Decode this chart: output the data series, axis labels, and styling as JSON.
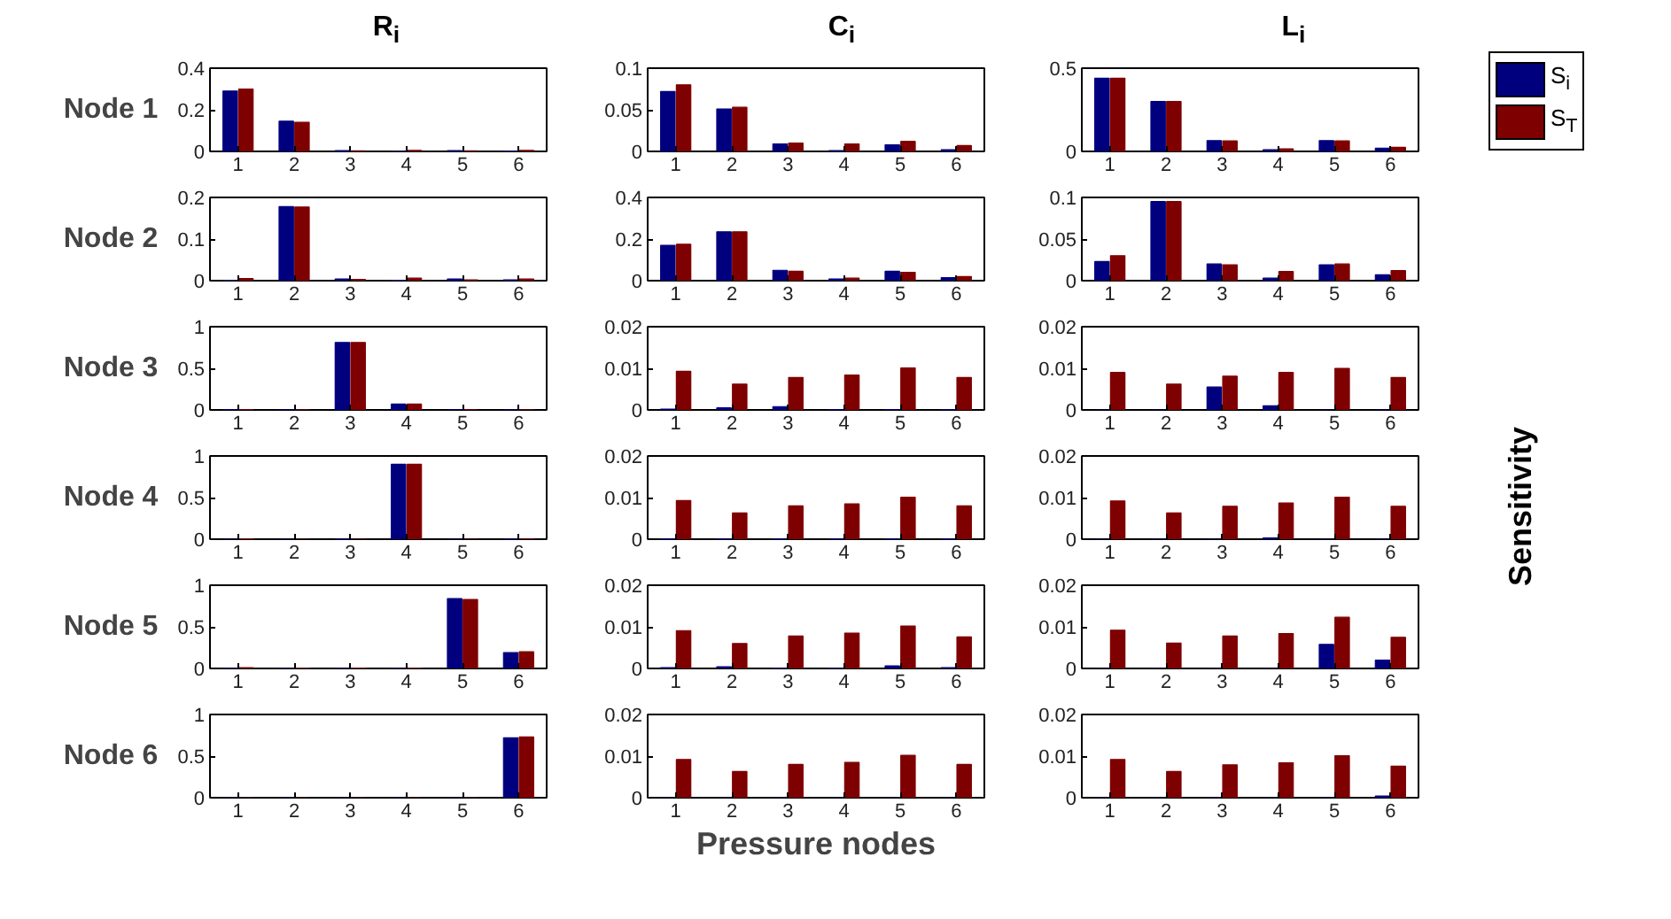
{
  "chart_data": [
    {
      "type": "bar",
      "title": "R$_{i}$",
      "ylabel": "Node 1",
      "categories": [
        "1",
        "2",
        "3",
        "4",
        "5",
        "6"
      ],
      "ylim": [
        0,
        0.4
      ],
      "yticks": [
        0,
        0.2,
        0.4
      ],
      "series": [
        {
          "color": "#00007f",
          "values": [
            0.29,
            0.145,
            0.004,
            0.001,
            0.004,
            0.002
          ]
        },
        {
          "color": "#7f0000",
          "values": [
            0.3,
            0.14,
            0.003,
            0.005,
            0.003,
            0.005
          ]
        }
      ]
    },
    {
      "type": "bar",
      "title": "C$_{i}$",
      "categories": [
        "1",
        "2",
        "3",
        "4",
        "5",
        "6"
      ],
      "ylim": [
        0,
        0.1
      ],
      "yticks": [
        0,
        0.05,
        0.1
      ],
      "series": [
        {
          "color": "#00007f",
          "values": [
            0.072,
            0.051,
            0.009,
            0.001,
            0.008,
            0.002
          ]
        },
        {
          "color": "#7f0000",
          "values": [
            0.08,
            0.053,
            0.01,
            0.009,
            0.012,
            0.007
          ]
        }
      ]
    },
    {
      "type": "bar",
      "title": "L$_{i}$",
      "categories": [
        "1",
        "2",
        "3",
        "4",
        "5",
        "6"
      ],
      "ylim": [
        0,
        0.5
      ],
      "yticks": [
        0,
        0.5
      ],
      "legend": "right",
      "series": [
        {
          "name": "S$_{i}$",
          "color": "#00007f",
          "values": [
            0.44,
            0.3,
            0.065,
            0.01,
            0.065,
            0.02
          ]
        },
        {
          "name": "S$_{T}$",
          "color": "#7f0000",
          "values": [
            0.44,
            0.3,
            0.063,
            0.015,
            0.063,
            0.025
          ]
        }
      ]
    },
    {
      "type": "bar",
      "ylabel": "Node 2",
      "categories": [
        "1",
        "2",
        "3",
        "4",
        "5",
        "6"
      ],
      "ylim": [
        0,
        0.2
      ],
      "yticks": [
        0,
        0.1,
        0.2
      ],
      "series": [
        {
          "color": "#00007f",
          "values": [
            0.001,
            0.178,
            0.004,
            0.001,
            0.004,
            0.002
          ]
        },
        {
          "color": "#7f0000",
          "values": [
            0.005,
            0.177,
            0.003,
            0.006,
            0.002,
            0.004
          ]
        }
      ]
    },
    {
      "type": "bar",
      "categories": [
        "1",
        "2",
        "3",
        "4",
        "5",
        "6"
      ],
      "ylim": [
        0,
        0.4
      ],
      "yticks": [
        0,
        0.2,
        0.4
      ],
      "series": [
        {
          "color": "#00007f",
          "values": [
            0.17,
            0.235,
            0.05,
            0.008,
            0.045,
            0.015
          ]
        },
        {
          "color": "#7f0000",
          "values": [
            0.175,
            0.235,
            0.045,
            0.012,
            0.04,
            0.02
          ]
        }
      ]
    },
    {
      "type": "bar",
      "categories": [
        "1",
        "2",
        "3",
        "4",
        "5",
        "6"
      ],
      "ylim": [
        0,
        0.1
      ],
      "yticks": [
        0,
        0.05,
        0.1
      ],
      "series": [
        {
          "color": "#00007f",
          "values": [
            0.023,
            0.095,
            0.02,
            0.003,
            0.019,
            0.007
          ]
        },
        {
          "color": "#7f0000",
          "values": [
            0.03,
            0.095,
            0.019,
            0.011,
            0.02,
            0.012
          ]
        }
      ]
    },
    {
      "type": "bar",
      "ylabel": "Node 3",
      "categories": [
        "1",
        "2",
        "3",
        "4",
        "5",
        "6"
      ],
      "ylim": [
        0,
        1
      ],
      "yticks": [
        0,
        0.5,
        1
      ],
      "series": [
        {
          "color": "#00007f",
          "values": [
            0.003,
            0.002,
            0.81,
            0.07,
            0.002,
            0.001
          ]
        },
        {
          "color": "#7f0000",
          "values": [
            0.004,
            0.002,
            0.81,
            0.07,
            0.002,
            0.001
          ]
        }
      ]
    },
    {
      "type": "bar",
      "categories": [
        "1",
        "2",
        "3",
        "4",
        "5",
        "6"
      ],
      "ylim": [
        0,
        0.02
      ],
      "yticks": [
        0,
        0.01,
        0.02
      ],
      "series": [
        {
          "color": "#00007f",
          "values": [
            0.0002,
            0.0005,
            0.0008,
            0.0001,
            0.0001,
            0.0001
          ]
        },
        {
          "color": "#7f0000",
          "values": [
            0.0093,
            0.0062,
            0.0078,
            0.0084,
            0.0101,
            0.0078
          ]
        }
      ]
    },
    {
      "type": "bar",
      "y2label": "Sensitivity",
      "categories": [
        "1",
        "2",
        "3",
        "4",
        "5",
        "6"
      ],
      "ylim": [
        0,
        0.02
      ],
      "yticks": [
        0,
        0.01,
        0.02
      ],
      "series": [
        {
          "color": "#00007f",
          "values": [
            0,
            0,
            0.0055,
            0.001,
            0,
            0
          ]
        },
        {
          "color": "#7f0000",
          "values": [
            0.009,
            0.0062,
            0.0081,
            0.009,
            0.01,
            0.0078
          ]
        }
      ]
    },
    {
      "type": "bar",
      "ylabel": "Node 4",
      "categories": [
        "1",
        "2",
        "3",
        "4",
        "5",
        "6"
      ],
      "ylim": [
        0,
        1
      ],
      "yticks": [
        0,
        0.5,
        1
      ],
      "series": [
        {
          "color": "#00007f",
          "values": [
            0,
            0,
            0.005,
            0.9,
            0,
            0.002
          ]
        },
        {
          "color": "#7f0000",
          "values": [
            0.003,
            0,
            0,
            0.9,
            0,
            0.002
          ]
        }
      ]
    },
    {
      "type": "bar",
      "categories": [
        "1",
        "2",
        "3",
        "4",
        "5",
        "6"
      ],
      "ylim": [
        0,
        0.02
      ],
      "yticks": [
        0,
        0.01,
        0.02
      ],
      "series": [
        {
          "color": "#00007f",
          "values": [
            0.0001,
            0.0001,
            0.0001,
            0.0001,
            0.0001,
            0.0001
          ]
        },
        {
          "color": "#7f0000",
          "values": [
            0.0093,
            0.0063,
            0.008,
            0.0085,
            0.0101,
            0.008
          ]
        }
      ]
    },
    {
      "type": "bar",
      "categories": [
        "1",
        "2",
        "3",
        "4",
        "5",
        "6"
      ],
      "ylim": [
        0,
        0.02
      ],
      "yticks": [
        0,
        0.01,
        0.02
      ],
      "series": [
        {
          "color": "#00007f",
          "values": [
            0,
            0,
            0,
            0.0003,
            0,
            0
          ]
        },
        {
          "color": "#7f0000",
          "values": [
            0.0092,
            0.0063,
            0.0079,
            0.0087,
            0.0101,
            0.0079
          ]
        }
      ]
    },
    {
      "type": "bar",
      "ylabel": "Node 5",
      "categories": [
        "1",
        "2",
        "3",
        "4",
        "5",
        "6"
      ],
      "ylim": [
        0,
        1
      ],
      "yticks": [
        0,
        0.5,
        1
      ],
      "series": [
        {
          "color": "#00007f",
          "values": [
            0.002,
            0.001,
            0.001,
            0.001,
            0.84,
            0.19
          ]
        },
        {
          "color": "#7f0000",
          "values": [
            0.01,
            0.003,
            0.005,
            0.003,
            0.83,
            0.2
          ]
        }
      ]
    },
    {
      "type": "bar",
      "categories": [
        "1",
        "2",
        "3",
        "4",
        "5",
        "6"
      ],
      "ylim": [
        0,
        0.02
      ],
      "yticks": [
        0,
        0.01,
        0.02
      ],
      "series": [
        {
          "color": "#00007f",
          "values": [
            0.0002,
            0.0004,
            0.0001,
            0.0001,
            0.0006,
            0.0002
          ]
        },
        {
          "color": "#7f0000",
          "values": [
            0.0091,
            0.006,
            0.0078,
            0.0085,
            0.0102,
            0.0076
          ]
        }
      ]
    },
    {
      "type": "bar",
      "categories": [
        "1",
        "2",
        "3",
        "4",
        "5",
        "6"
      ],
      "ylim": [
        0,
        0.02
      ],
      "yticks": [
        0,
        0.01,
        0.02
      ],
      "series": [
        {
          "color": "#00007f",
          "values": [
            0,
            0,
            0,
            0,
            0.0058,
            0.002
          ]
        },
        {
          "color": "#7f0000",
          "values": [
            0.0092,
            0.0061,
            0.0078,
            0.0084,
            0.0123,
            0.0075
          ]
        }
      ]
    },
    {
      "type": "bar",
      "ylabel": "Node 6",
      "categories": [
        "1",
        "2",
        "3",
        "4",
        "5",
        "6"
      ],
      "ylim": [
        0,
        1
      ],
      "yticks": [
        0,
        0.5,
        1
      ],
      "series": [
        {
          "color": "#00007f",
          "values": [
            0,
            0,
            0,
            0,
            0,
            0.72
          ]
        },
        {
          "color": "#7f0000",
          "values": [
            0,
            0,
            0,
            0,
            0,
            0.73
          ]
        }
      ]
    },
    {
      "type": "bar",
      "xlabel": "Pressure nodes",
      "categories": [
        "1",
        "2",
        "3",
        "4",
        "5",
        "6"
      ],
      "ylim": [
        0,
        0.02
      ],
      "yticks": [
        0,
        0.01,
        0.02
      ],
      "series": [
        {
          "color": "#00007f",
          "values": [
            0,
            0,
            0,
            0,
            0,
            0
          ]
        },
        {
          "color": "#7f0000",
          "values": [
            0.0092,
            0.0063,
            0.008,
            0.0085,
            0.0102,
            0.008
          ]
        }
      ]
    },
    {
      "type": "bar",
      "categories": [
        "1",
        "2",
        "3",
        "4",
        "5",
        "6"
      ],
      "ylim": [
        0,
        0.02
      ],
      "yticks": [
        0,
        0.01,
        0.02
      ],
      "series": [
        {
          "color": "#00007f",
          "values": [
            0,
            0,
            0,
            0,
            0,
            0.0004
          ]
        },
        {
          "color": "#7f0000",
          "values": [
            0.0092,
            0.0063,
            0.0079,
            0.0084,
            0.0101,
            0.0076
          ]
        }
      ]
    }
  ]
}
